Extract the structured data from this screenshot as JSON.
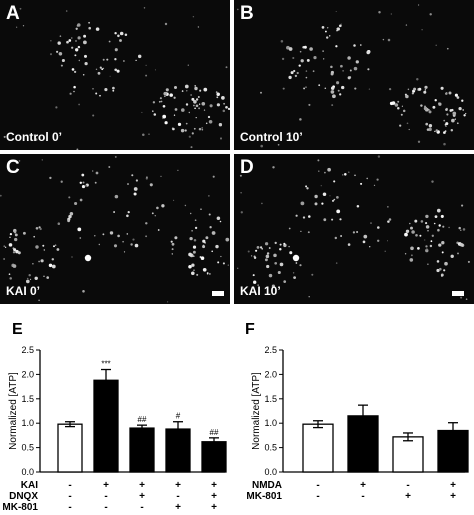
{
  "images": [
    {
      "letter": "A",
      "caption": "Control 0’",
      "scale_bar": false
    },
    {
      "letter": "B",
      "caption": "Control 10’",
      "scale_bar": false
    },
    {
      "letter": "C",
      "caption": "KAI 0’",
      "scale_bar": true
    },
    {
      "letter": "D",
      "caption": "KAI 10’",
      "scale_bar": true
    }
  ],
  "chart_data": [
    {
      "type": "bar",
      "panel": "E",
      "ylabel": "Normalized [ATP]",
      "ylim": [
        0,
        2.5
      ],
      "yticks": [
        "0.0",
        "0.5",
        "1.0",
        "1.5",
        "2.0",
        "2.5"
      ],
      "values": [
        0.98,
        1.88,
        0.9,
        0.88,
        0.62
      ],
      "errors": [
        0.05,
        0.22,
        0.06,
        0.15,
        0.08
      ],
      "fill": [
        "white",
        "black",
        "black",
        "black",
        "black"
      ],
      "significance": [
        "",
        "***",
        "##",
        "#",
        "##"
      ],
      "conditions": [
        {
          "name": "KAI",
          "signs": [
            "-",
            "+",
            "+",
            "+",
            "+"
          ]
        },
        {
          "name": "DNQX",
          "signs": [
            "-",
            "-",
            "+",
            "-",
            "+"
          ]
        },
        {
          "name": "MK-801",
          "signs": [
            "-",
            "-",
            "-",
            "+",
            "+"
          ]
        }
      ]
    },
    {
      "type": "bar",
      "panel": "F",
      "ylabel": "Normalized [ATP]",
      "ylim": [
        0,
        2.5
      ],
      "yticks": [
        "0.0",
        "0.5",
        "1.0",
        "1.5",
        "2.0",
        "2.5"
      ],
      "values": [
        0.98,
        1.15,
        0.72,
        0.85
      ],
      "errors": [
        0.07,
        0.22,
        0.08,
        0.16
      ],
      "fill": [
        "white",
        "black",
        "white",
        "black"
      ],
      "significance": [
        "",
        "",
        "",
        ""
      ],
      "conditions": [
        {
          "name": "NMDA",
          "signs": [
            "-",
            "+",
            "-",
            "+"
          ]
        },
        {
          "name": "MK-801",
          "signs": [
            "-",
            "-",
            "+",
            "+"
          ]
        }
      ]
    }
  ]
}
